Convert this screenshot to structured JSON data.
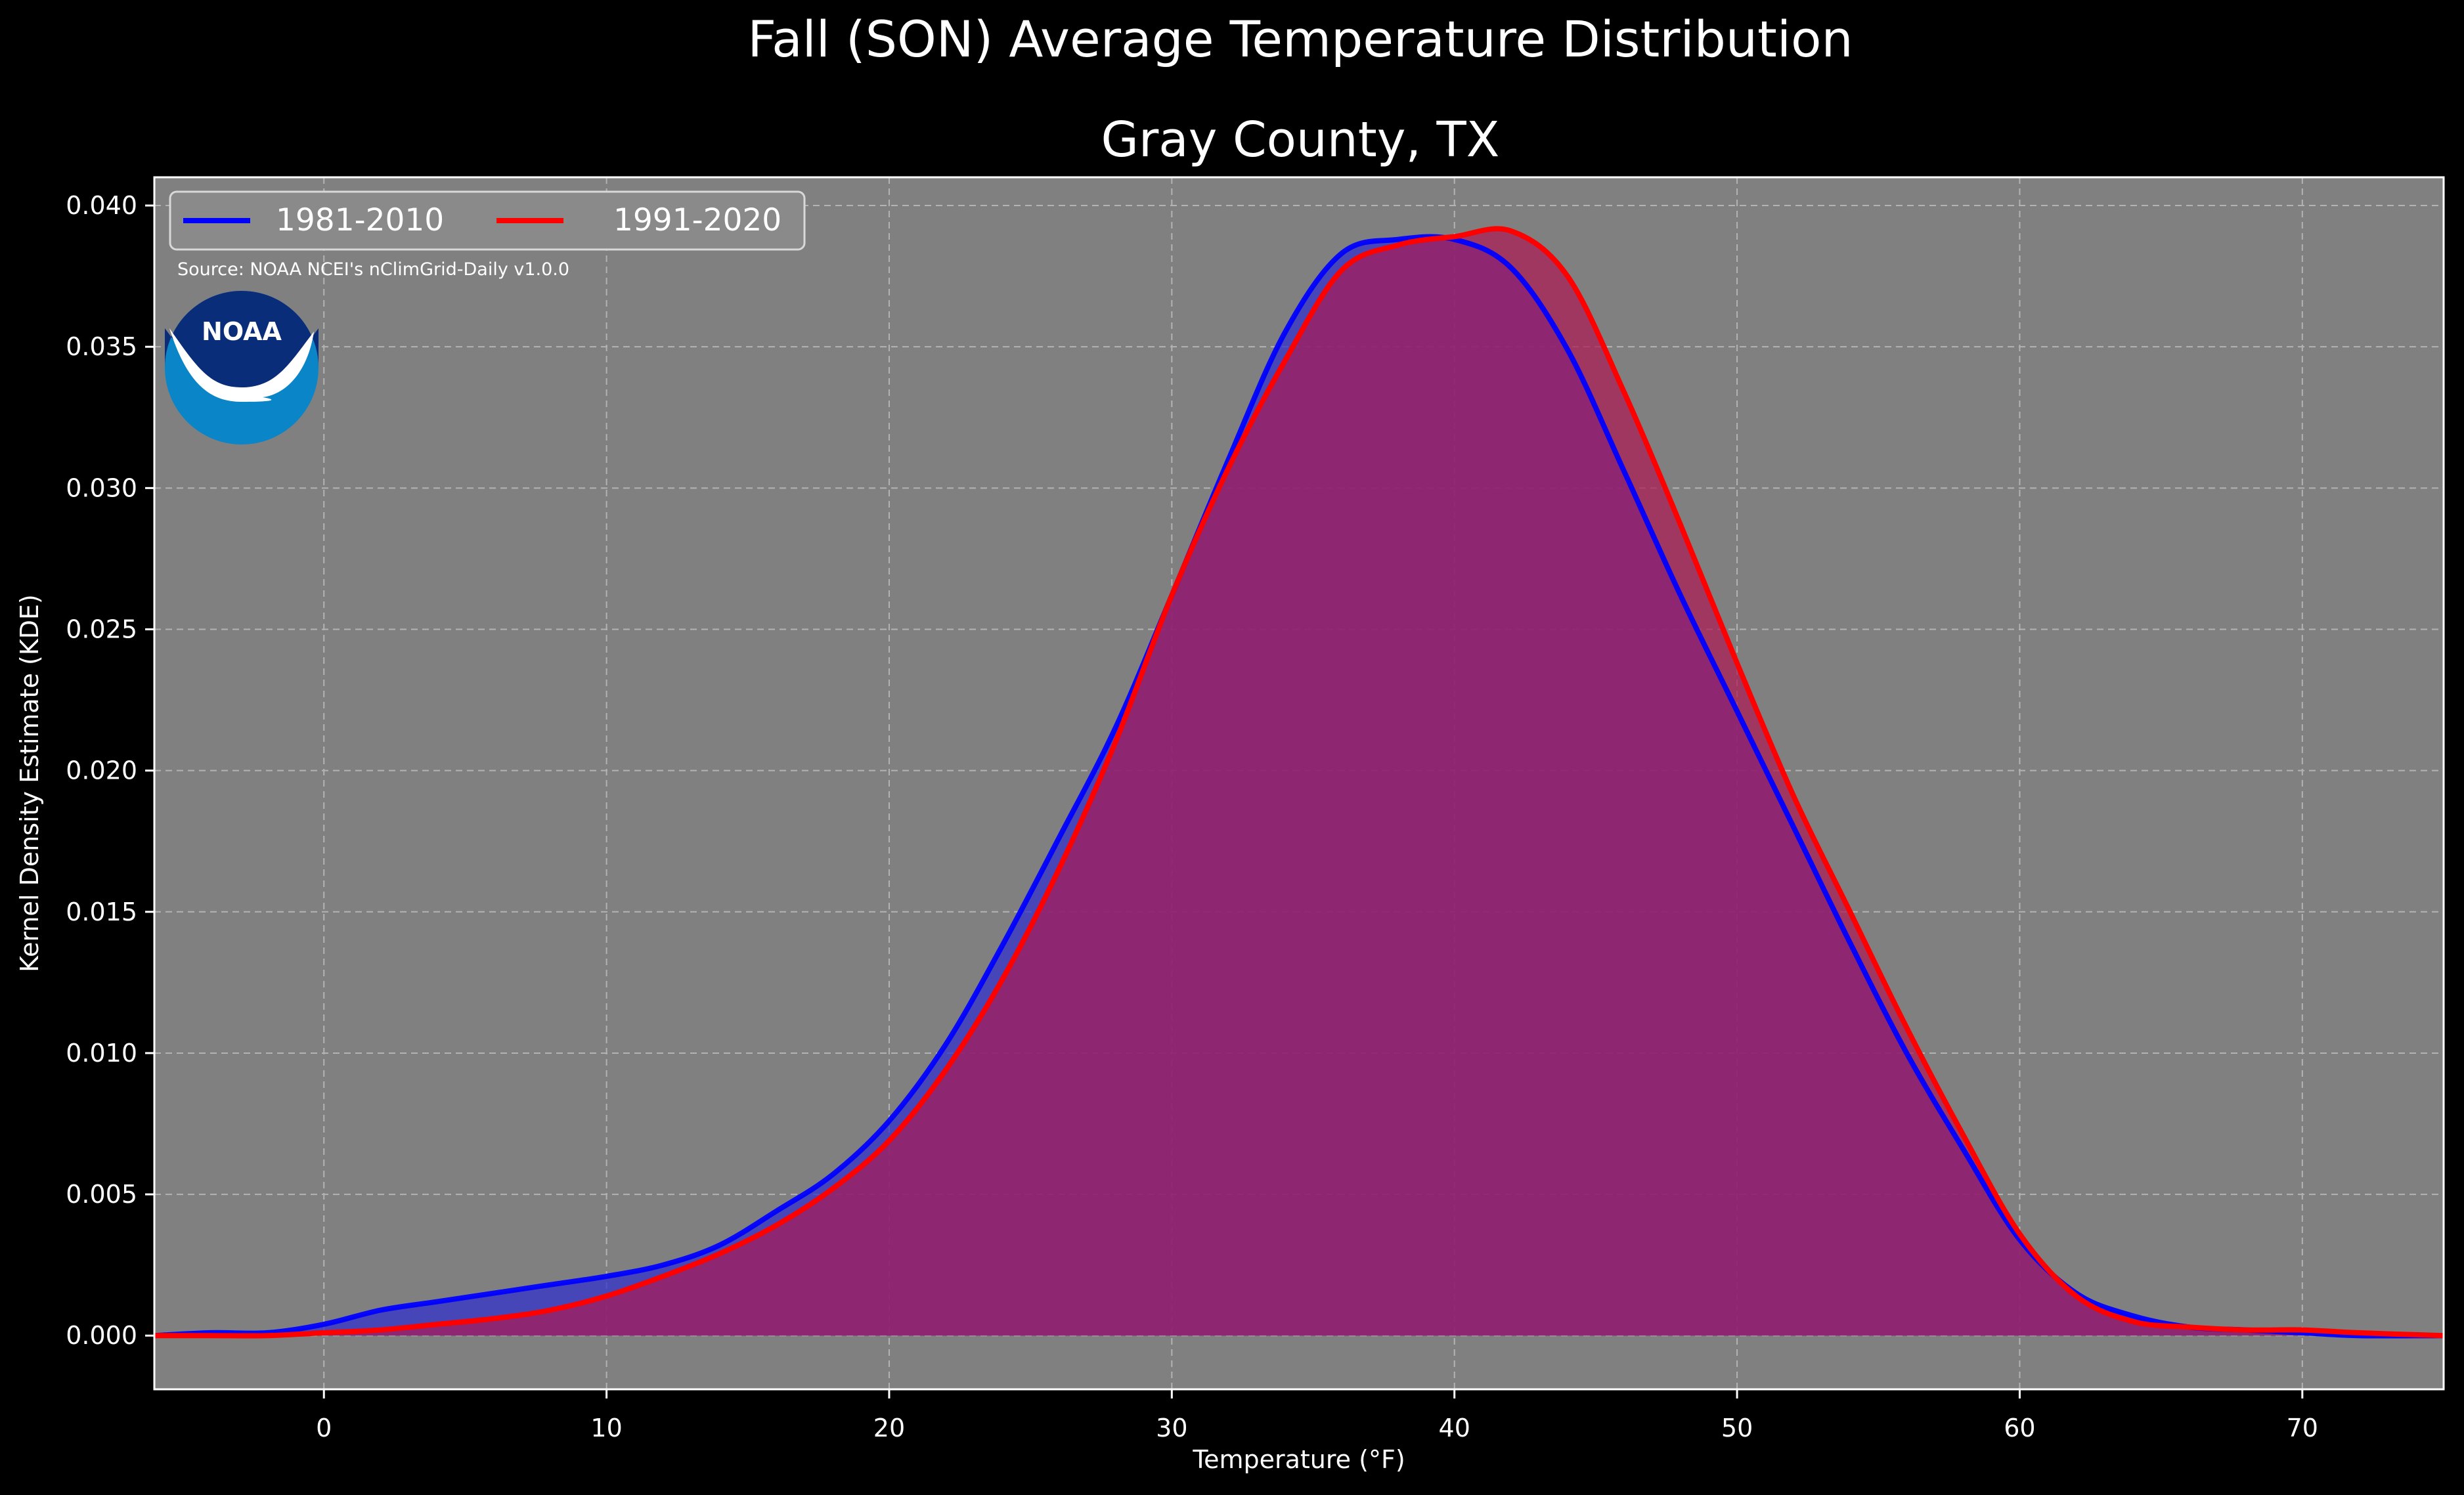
{
  "chart_data": {
    "type": "area",
    "title": "Fall (SON) Average Temperature Distribution",
    "subtitle": "Gray County, TX",
    "xlabel": "Temperature (°F)",
    "ylabel": "Kernel Density Estimate (KDE)",
    "source": "Source: NOAA NCEI's nClimGrid-Daily v1.0.0",
    "logo_text": "NOAA",
    "xlim": [
      -6,
      75
    ],
    "ylim": [
      -0.0019,
      0.041
    ],
    "x_ticks": [
      0,
      10,
      20,
      30,
      40,
      50,
      60,
      70
    ],
    "x_tick_labels": [
      "0",
      "10",
      "20",
      "30",
      "40",
      "50",
      "60",
      "70"
    ],
    "y_ticks": [
      0.0,
      0.005,
      0.01,
      0.015,
      0.02,
      0.025,
      0.03,
      0.035,
      0.04
    ],
    "y_tick_labels": [
      "0.000",
      "0.005",
      "0.010",
      "0.015",
      "0.020",
      "0.025",
      "0.030",
      "0.035",
      "0.040"
    ],
    "grid": true,
    "legend_position": "top-left",
    "background_color": "#000000",
    "plot_background": "#808080",
    "series": [
      {
        "name": "1981-2010",
        "color": "#0000ff",
        "fill": "#3333cc",
        "x": [
          -6,
          -4,
          -2,
          0,
          2,
          4,
          6,
          8,
          10,
          12,
          14,
          16,
          18,
          20,
          22,
          24,
          26,
          28,
          30,
          32,
          34,
          36,
          38,
          40,
          42,
          44,
          46,
          48,
          50,
          52,
          54,
          56,
          58,
          60,
          62,
          64,
          66,
          68,
          70,
          72,
          75
        ],
        "y": [
          0.0,
          0.0001,
          0.0001,
          0.0004,
          0.0009,
          0.0012,
          0.0015,
          0.0018,
          0.0021,
          0.0025,
          0.0032,
          0.0044,
          0.0057,
          0.0076,
          0.0103,
          0.0138,
          0.0176,
          0.0215,
          0.0262,
          0.031,
          0.0355,
          0.0383,
          0.0388,
          0.0388,
          0.0378,
          0.0349,
          0.0306,
          0.0262,
          0.0221,
          0.018,
          0.0139,
          0.01,
          0.0066,
          0.0034,
          0.0015,
          0.0007,
          0.0003,
          0.0002,
          0.0001,
          0.0,
          0.0
        ]
      },
      {
        "name": "1991-2020",
        "color": "#ff0000",
        "fill": "#aa1a55",
        "x": [
          -6,
          -4,
          -2,
          0,
          2,
          4,
          6,
          8,
          10,
          12,
          14,
          16,
          18,
          20,
          22,
          24,
          26,
          28,
          30,
          32,
          34,
          36,
          38,
          40,
          42,
          44,
          46,
          48,
          50,
          52,
          54,
          56,
          58,
          60,
          62,
          64,
          66,
          68,
          70,
          72,
          75
        ],
        "y": [
          0.0,
          0.0,
          0.0,
          0.0001,
          0.0002,
          0.0004,
          0.0006,
          0.0009,
          0.0014,
          0.0021,
          0.0029,
          0.0039,
          0.0052,
          0.0069,
          0.0094,
          0.0126,
          0.0165,
          0.021,
          0.0262,
          0.0307,
          0.0345,
          0.0377,
          0.0386,
          0.0389,
          0.0391,
          0.0375,
          0.0334,
          0.0287,
          0.0238,
          0.0191,
          0.015,
          0.0109,
          0.0071,
          0.0036,
          0.0014,
          0.0005,
          0.0003,
          0.0002,
          0.0002,
          0.0001,
          0.0
        ]
      }
    ]
  }
}
